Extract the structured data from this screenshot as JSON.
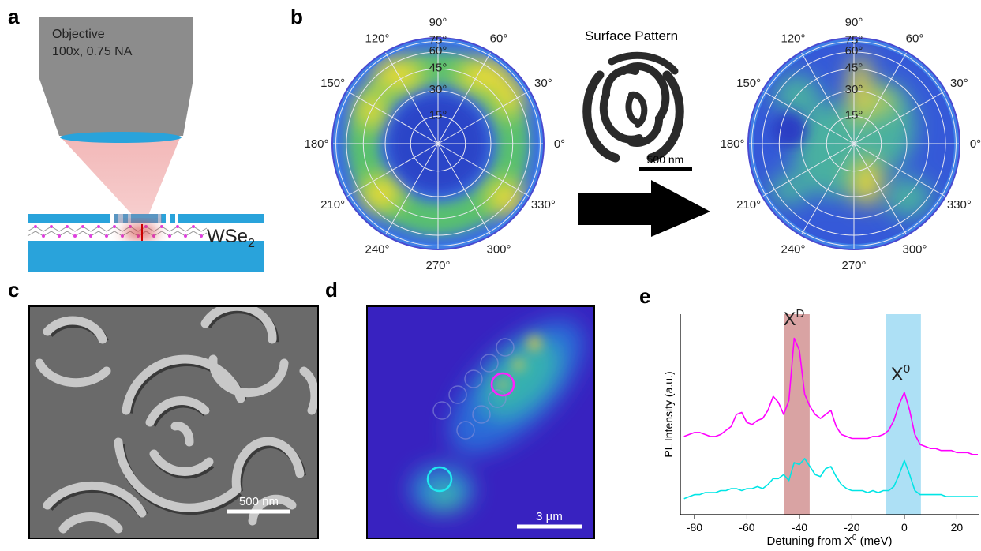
{
  "panel_labels": [
    "a",
    "b",
    "c",
    "d",
    "e"
  ],
  "panel_a": {
    "objective": "Objective",
    "spec": "100x, 0.75 NA",
    "material": "WSe",
    "material_sub": "2"
  },
  "panel_b": {
    "angle_labels": [
      "0°",
      "30°",
      "60°",
      "90°",
      "120°",
      "150°",
      "180°",
      "210°",
      "240°",
      "270°",
      "300°",
      "330°"
    ],
    "radial_labels": [
      "15°",
      "30°",
      "45°",
      "60°",
      "75°"
    ],
    "pattern_title": "Surface Pattern",
    "scale_bar": "500 nm"
  },
  "panel_c": {
    "scale_bar": "500 nm"
  },
  "panel_d": {
    "scale_bar": "3 µm"
  },
  "chart_data": {
    "type": "line",
    "ylabel": "PL Intensity (a.u.)",
    "xlabel": "Detuning from X",
    "xlabel_sup": "0",
    "xlabel_unit": " (meV)",
    "x": [
      -84,
      -82,
      -80,
      -78,
      -76,
      -74,
      -72,
      -70,
      -68,
      -66,
      -64,
      -62,
      -60,
      -58,
      -56,
      -54,
      -52,
      -50,
      -48,
      -46,
      -44,
      -42,
      -40,
      -38,
      -36,
      -34,
      -32,
      -30,
      -28,
      -26,
      -24,
      -22,
      -20,
      -18,
      -16,
      -14,
      -12,
      -10,
      -8,
      -6,
      -4,
      -2,
      0,
      2,
      4,
      6,
      8,
      10,
      12,
      14,
      16,
      18,
      20,
      22,
      24,
      26,
      28
    ],
    "series": [
      {
        "color": "#ff00ff",
        "values": [
          0.39,
          0.4,
          0.41,
          0.41,
          0.4,
          0.39,
          0.39,
          0.4,
          0.42,
          0.44,
          0.5,
          0.51,
          0.46,
          0.45,
          0.47,
          0.48,
          0.52,
          0.59,
          0.56,
          0.5,
          0.57,
          0.88,
          0.82,
          0.6,
          0.54,
          0.5,
          0.48,
          0.5,
          0.52,
          0.44,
          0.4,
          0.39,
          0.38,
          0.38,
          0.38,
          0.38,
          0.39,
          0.39,
          0.4,
          0.42,
          0.47,
          0.55,
          0.61,
          0.52,
          0.4,
          0.35,
          0.34,
          0.33,
          0.33,
          0.32,
          0.32,
          0.32,
          0.31,
          0.31,
          0.31,
          0.3,
          0.3
        ]
      },
      {
        "color": "#00e5e5",
        "values": [
          0.08,
          0.09,
          0.1,
          0.1,
          0.11,
          0.11,
          0.11,
          0.12,
          0.12,
          0.13,
          0.13,
          0.12,
          0.13,
          0.13,
          0.14,
          0.13,
          0.15,
          0.18,
          0.18,
          0.2,
          0.17,
          0.26,
          0.25,
          0.28,
          0.24,
          0.2,
          0.19,
          0.23,
          0.24,
          0.19,
          0.15,
          0.13,
          0.12,
          0.12,
          0.12,
          0.11,
          0.12,
          0.11,
          0.12,
          0.12,
          0.14,
          0.2,
          0.27,
          0.2,
          0.12,
          0.1,
          0.1,
          0.1,
          0.1,
          0.1,
          0.09,
          0.09,
          0.09,
          0.09,
          0.09,
          0.09,
          0.09
        ]
      }
    ],
    "xlim": [
      -85.4,
      28.3
    ],
    "ylim": [
      0,
      1
    ],
    "xticks": [
      -80,
      -60,
      -40,
      -20,
      0,
      20
    ],
    "bands": [
      {
        "range": [
          -45.7,
          -36.1
        ],
        "color": "#d9a3a3",
        "label": "X",
        "label_sup": "D"
      },
      {
        "range": [
          -6.9,
          6.3
        ],
        "color": "#ade0f5",
        "label": "X",
        "label_sup": "0"
      }
    ]
  }
}
